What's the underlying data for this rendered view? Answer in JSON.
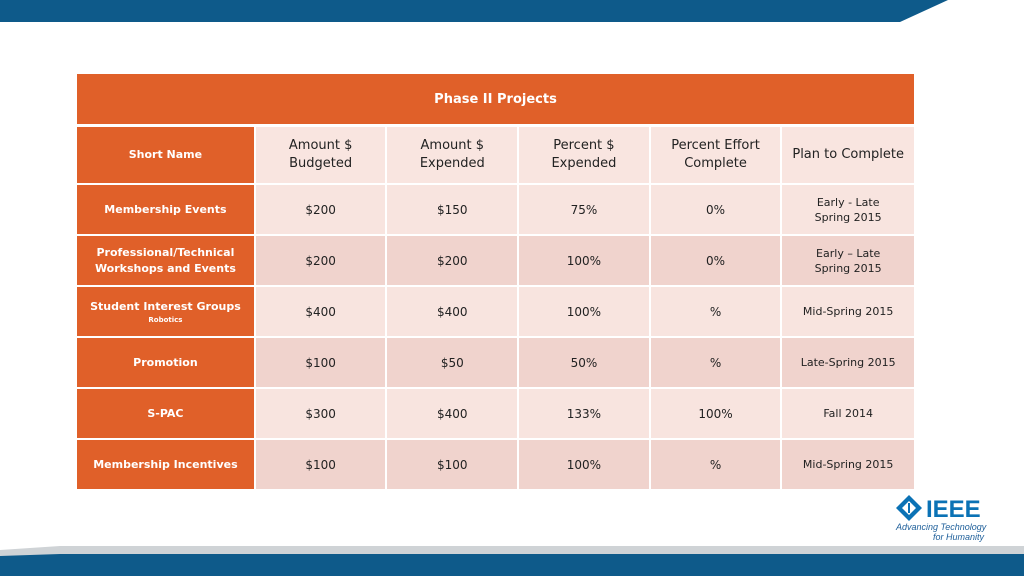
{
  "colors": {
    "accent": "#e06029",
    "blue": "#0e5a8a",
    "light_row": "#f8e4df",
    "dark_row": "#f0d3cd"
  },
  "table": {
    "title": "Phase II Projects",
    "headers": {
      "short_name": "Short Name",
      "budgeted_1": "Amount $",
      "budgeted_2": "Budgeted",
      "expended_1": "Amount $",
      "expended_2": "Expended",
      "pct_exp_1": "Percent $",
      "pct_exp_2": "Expended",
      "effort_1": "Percent Effort",
      "effort_2": "Complete",
      "plan": "Plan to Complete"
    },
    "rows": [
      {
        "name": "Membership Events",
        "sub": "",
        "budgeted": "$200",
        "expended": "$150",
        "pct": "75%",
        "effort": "0%",
        "plan_1": "Early - Late",
        "plan_2": "Spring 2015"
      },
      {
        "name": "Professional/Technical",
        "name_2": "Workshops and Events",
        "budgeted": "$200",
        "expended": "$200",
        "pct": "100%",
        "effort": "0%",
        "plan_1": "Early – Late",
        "plan_2": "Spring 2015"
      },
      {
        "name": "Student Interest Groups",
        "sub": "Robotics",
        "budgeted": "$400",
        "expended": "$400",
        "pct": "100%",
        "effort": "%",
        "plan_1": "Mid-Spring 2015"
      },
      {
        "name": "Promotion",
        "budgeted": "$100",
        "expended": "$50",
        "pct": "50%",
        "effort": "%",
        "plan_1": "Late-Spring 2015"
      },
      {
        "name": "S-PAC",
        "budgeted": "$300",
        "expended": "$400",
        "pct": "133%",
        "effort": "100%",
        "plan_1": "Fall 2014"
      },
      {
        "name": "Membership Incentives",
        "budgeted": "$100",
        "expended": "$100",
        "pct": "100%",
        "effort": "%",
        "plan_1": "Mid-Spring 2015"
      }
    ]
  },
  "logo": {
    "text": "IEEE",
    "tagline_1": "Advancing Technology",
    "tagline_2": "for Humanity"
  }
}
